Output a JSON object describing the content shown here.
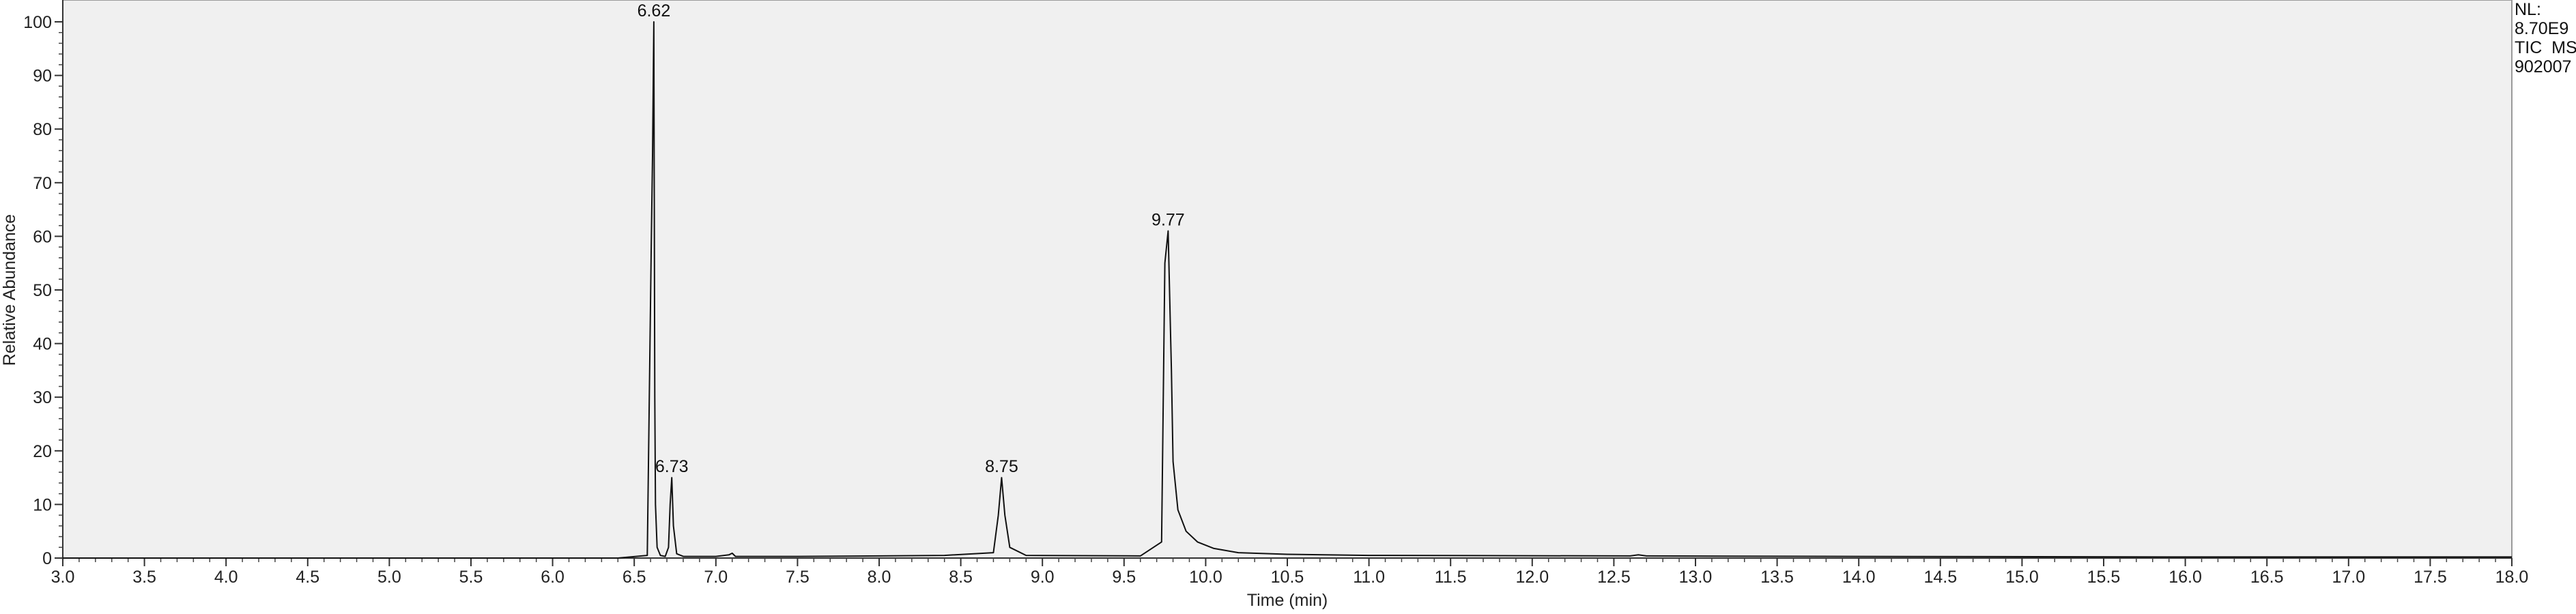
{
  "chart_data": {
    "type": "line",
    "xlabel": "Time (min)",
    "ylabel": "Relative Abundance",
    "xlim": [
      3.0,
      18.0
    ],
    "ylim": [
      0,
      100
    ],
    "x_ticks": [
      "3.0",
      "3.5",
      "4.0",
      "4.5",
      "5.0",
      "5.5",
      "6.0",
      "6.5",
      "7.0",
      "7.5",
      "8.0",
      "8.5",
      "9.0",
      "9.5",
      "10.0",
      "10.5",
      "11.0",
      "11.5",
      "12.0",
      "12.5",
      "13.0",
      "13.5",
      "14.0",
      "14.5",
      "15.0",
      "15.5",
      "16.0",
      "16.5",
      "17.0",
      "17.5",
      "18.0"
    ],
    "y_ticks": [
      "0",
      "10",
      "20",
      "30",
      "40",
      "50",
      "60",
      "70",
      "80",
      "90",
      "100"
    ],
    "grid": false,
    "info_lines": [
      "NL:",
      "8.70E9",
      "TIC  MS",
      "902007"
    ],
    "peaks": [
      {
        "rt": 6.62,
        "label": "6.62",
        "height": 100
      },
      {
        "rt": 6.73,
        "label": "6.73",
        "height": 15
      },
      {
        "rt": 8.75,
        "label": "8.75",
        "height": 15
      },
      {
        "rt": 9.77,
        "label": "9.77",
        "height": 61
      }
    ],
    "series": [
      {
        "x": [
          3.0,
          6.4,
          6.58,
          6.605,
          6.612,
          6.62,
          6.626,
          6.63,
          6.64,
          6.66,
          6.69,
          6.71,
          6.72,
          6.73,
          6.74,
          6.76,
          6.8,
          7.0,
          7.08,
          7.1,
          7.12,
          7.5,
          8.0,
          8.4,
          8.7,
          8.73,
          8.75,
          8.77,
          8.8,
          8.9,
          9.6,
          9.73,
          9.75,
          9.77,
          9.79,
          9.8,
          9.83,
          9.88,
          9.95,
          10.05,
          10.2,
          10.5,
          11.0,
          12.6,
          12.65,
          12.7,
          14.0,
          16.0,
          18.0
        ],
        "y": [
          0,
          0,
          0.5,
          60,
          75,
          100,
          30,
          10,
          2,
          0.5,
          0.3,
          2,
          10,
          15,
          6,
          0.8,
          0.3,
          0.3,
          0.6,
          0.9,
          0.3,
          0.3,
          0.4,
          0.5,
          1.0,
          8,
          15,
          8,
          2,
          0.5,
          0.4,
          3,
          55,
          61,
          35,
          18,
          9,
          5,
          3,
          1.8,
          1.0,
          0.7,
          0.5,
          0.4,
          0.6,
          0.4,
          0.3,
          0.2,
          0.2
        ]
      }
    ]
  }
}
